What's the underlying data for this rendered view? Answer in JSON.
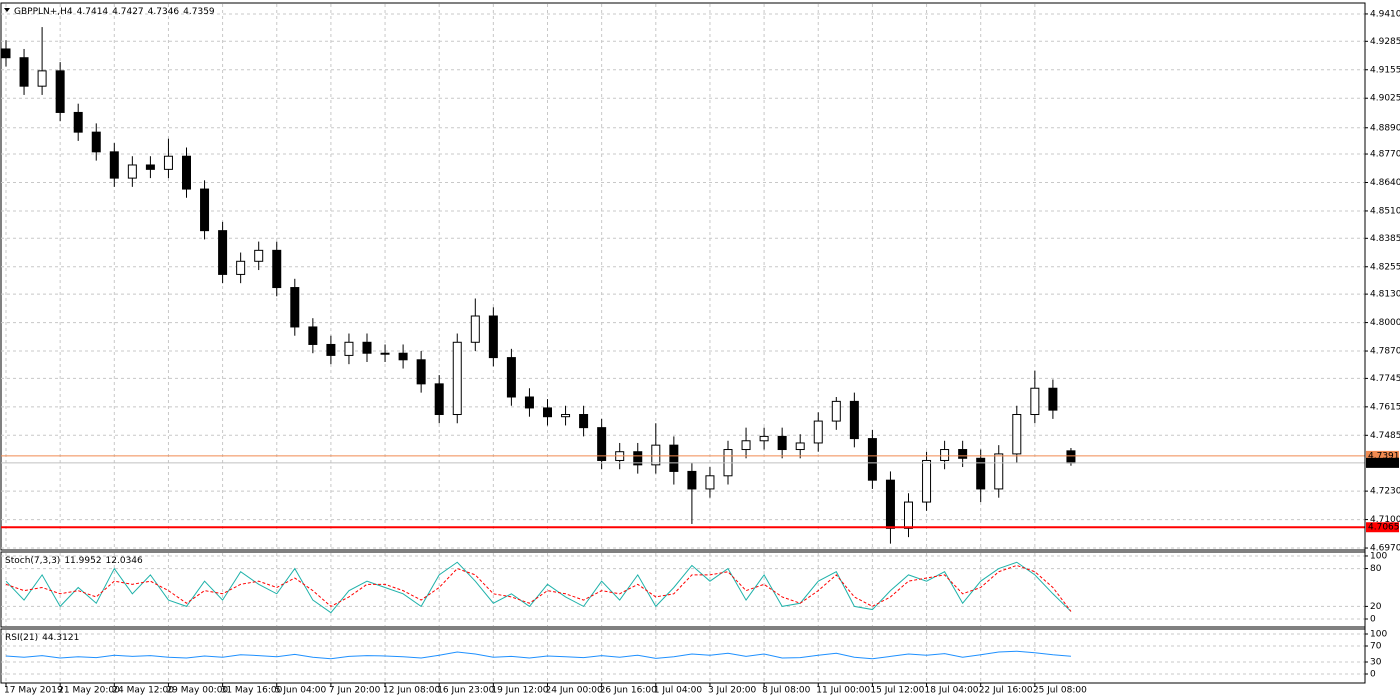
{
  "chart_data": [
    {
      "type": "candlestick",
      "title": "GBPPLN+,H4",
      "categories": [
        "17 May 2019",
        null,
        null,
        "21 May 20:00",
        null,
        null,
        "24 May 12:00",
        null,
        null,
        "29 May 00:00",
        null,
        null,
        "31 May 16:00",
        null,
        null,
        "5 Jun 04:00",
        null,
        null,
        "7 Jun 20:00",
        null,
        null,
        "12 Jun 08:00",
        null,
        null,
        "16 Jun 23:00",
        null,
        null,
        "19 Jun 12:00",
        null,
        null,
        "24 Jun 00:00",
        null,
        null,
        "26 Jun 16:00",
        null,
        null,
        "1 Jul 04:00",
        null,
        null,
        "3 Jul 20:00",
        null,
        null,
        "8 Jul 08:00",
        null,
        null,
        "11 Jul 00:00",
        null,
        null,
        "15 Jul 12:00",
        null,
        null,
        "18 Jul 04:00",
        null,
        null,
        "22 Jul 16:00",
        null,
        null,
        "25 Jul 08:00",
        null,
        null
      ],
      "open": [
        4.925,
        4.921,
        4.908,
        4.915,
        4.896,
        4.887,
        4.878,
        4.866,
        4.872,
        4.87,
        4.876,
        4.861,
        4.842,
        4.822,
        4.828,
        4.833,
        4.816,
        4.798,
        4.79,
        4.785,
        4.791,
        4.786,
        4.786,
        4.783,
        4.772,
        4.758,
        4.791,
        4.803,
        4.784,
        4.766,
        4.761,
        4.757,
        4.758,
        4.752,
        4.737,
        4.741,
        4.735,
        4.744,
        4.732,
        4.724,
        4.73,
        4.742,
        4.746,
        4.748,
        4.742,
        4.745,
        4.755,
        4.764,
        4.747,
        4.728,
        4.706,
        4.718,
        4.737,
        4.742,
        4.738,
        4.724,
        4.74,
        4.758,
        4.77,
        4.7414
      ],
      "high": [
        4.929,
        4.925,
        4.935,
        4.919,
        4.9,
        4.891,
        4.882,
        4.876,
        4.876,
        4.884,
        4.88,
        4.865,
        4.846,
        4.832,
        4.837,
        4.837,
        4.82,
        4.802,
        4.794,
        4.795,
        4.795,
        4.79,
        4.79,
        4.787,
        4.776,
        4.795,
        4.811,
        4.807,
        4.788,
        4.77,
        4.765,
        4.762,
        4.762,
        4.756,
        4.745,
        4.745,
        4.754,
        4.748,
        4.736,
        4.734,
        4.746,
        4.752,
        4.752,
        4.752,
        4.749,
        4.759,
        4.766,
        4.768,
        4.751,
        4.732,
        4.722,
        4.741,
        4.746,
        4.746,
        4.742,
        4.744,
        4.762,
        4.778,
        4.774,
        4.7427
      ],
      "low": [
        4.917,
        4.904,
        4.904,
        4.892,
        4.883,
        4.874,
        4.862,
        4.862,
        4.866,
        4.866,
        4.857,
        4.838,
        4.818,
        4.818,
        4.824,
        4.812,
        4.794,
        4.786,
        4.781,
        4.781,
        4.782,
        4.782,
        4.779,
        4.768,
        4.754,
        4.754,
        4.787,
        4.78,
        4.762,
        4.757,
        4.753,
        4.753,
        4.748,
        4.733,
        4.733,
        4.731,
        4.731,
        4.726,
        4.708,
        4.72,
        4.726,
        4.738,
        4.742,
        4.738,
        4.738,
        4.741,
        4.751,
        4.743,
        4.724,
        4.699,
        4.702,
        4.714,
        4.733,
        4.734,
        4.718,
        4.72,
        4.736,
        4.754,
        4.756,
        4.7346
      ],
      "close": [
        4.921,
        4.908,
        4.915,
        4.896,
        4.887,
        4.878,
        4.866,
        4.872,
        4.87,
        4.876,
        4.861,
        4.842,
        4.822,
        4.828,
        4.833,
        4.816,
        4.798,
        4.79,
        4.785,
        4.791,
        4.786,
        4.786,
        4.783,
        4.772,
        4.758,
        4.791,
        4.803,
        4.784,
        4.766,
        4.761,
        4.757,
        4.758,
        4.752,
        4.737,
        4.741,
        4.735,
        4.744,
        4.732,
        4.724,
        4.73,
        4.742,
        4.746,
        4.748,
        4.742,
        4.745,
        4.755,
        4.764,
        4.747,
        4.728,
        4.706,
        4.718,
        4.737,
        4.742,
        4.738,
        4.724,
        4.74,
        4.758,
        4.77,
        4.76,
        4.7359
      ],
      "up_color": "#ffffff",
      "down_color": "#000000",
      "line_color": "#000000",
      "ylim": [
        4.6961,
        4.946
      ],
      "yticks": [
        {
          "value": 4.941,
          "label": "4.9410"
        },
        4.9285,
        4.9155,
        4.9025,
        {
          "value": 4.889,
          "label": "4.8890"
        },
        {
          "value": 4.877,
          "label": "4.8770"
        },
        {
          "value": 4.864,
          "label": "4.8640"
        },
        {
          "value": 4.851,
          "label": "4.8510"
        },
        4.8385,
        4.8255,
        {
          "value": 4.813,
          "label": "4.8130"
        },
        {
          "value": 4.8,
          "label": "4.8000"
        },
        {
          "value": 4.787,
          "label": "4.7870"
        },
        4.7745,
        4.7615,
        4.7485,
        {
          "value": 4.723,
          "label": "4.7230"
        },
        {
          "value": 4.71,
          "label": "4.7100"
        },
        {
          "value": 4.697,
          "label": "4.6970"
        }
      ],
      "price_lines": [
        {
          "value": 4.7391,
          "color": "#f08a50"
        },
        {
          "value": 4.7065,
          "color": "#ff0000"
        }
      ],
      "grid": true
    },
    {
      "type": "line",
      "title": "Stoch(7,3,3)",
      "series": [
        {
          "color": "#20b2aa",
          "style": "solid",
          "values": [
            60,
            30,
            70,
            20,
            50,
            25,
            80,
            40,
            70,
            30,
            20,
            60,
            30,
            75,
            55,
            40,
            80,
            30,
            10,
            45,
            60,
            50,
            40,
            20,
            70,
            90,
            60,
            25,
            40,
            20,
            55,
            35,
            20,
            60,
            30,
            70,
            20,
            50,
            85,
            60,
            80,
            30,
            70,
            20,
            25,
            60,
            75,
            20,
            15,
            45,
            70,
            60,
            75,
            25,
            60,
            80,
            90,
            70,
            40,
            11.9952
          ]
        },
        {
          "color": "#ff0000",
          "style": "dashed",
          "values": [
            55,
            45,
            50,
            40,
            45,
            35,
            60,
            55,
            60,
            45,
            25,
            45,
            40,
            55,
            60,
            50,
            65,
            45,
            20,
            35,
            55,
            55,
            45,
            30,
            50,
            80,
            70,
            40,
            35,
            25,
            45,
            40,
            30,
            45,
            40,
            55,
            35,
            40,
            70,
            70,
            75,
            45,
            55,
            35,
            25,
            45,
            70,
            35,
            20,
            35,
            60,
            65,
            70,
            40,
            50,
            75,
            85,
            75,
            50,
            12.0346
          ]
        }
      ],
      "ylim": [
        -12.7,
        106.3
      ],
      "yticks": [
        0,
        20,
        80,
        100
      ],
      "grid": true
    },
    {
      "type": "line",
      "title": "RSI(21)",
      "series": [
        {
          "color": "#1e90ff",
          "style": "solid",
          "values": [
            45,
            42,
            46,
            40,
            43,
            41,
            47,
            44,
            46,
            42,
            40,
            45,
            42,
            48,
            46,
            43,
            49,
            42,
            38,
            44,
            46,
            45,
            43,
            40,
            47,
            55,
            50,
            42,
            44,
            40,
            45,
            43,
            41,
            46,
            42,
            47,
            39,
            43,
            50,
            47,
            52,
            44,
            50,
            40,
            41,
            47,
            52,
            42,
            38,
            44,
            50,
            47,
            51,
            42,
            48,
            55,
            57,
            53,
            48,
            44.3121
          ]
        }
      ],
      "ylim": [
        -22.5,
        112.5
      ],
      "yticks": [
        0,
        30,
        70,
        100
      ],
      "grid": true
    }
  ]
}
